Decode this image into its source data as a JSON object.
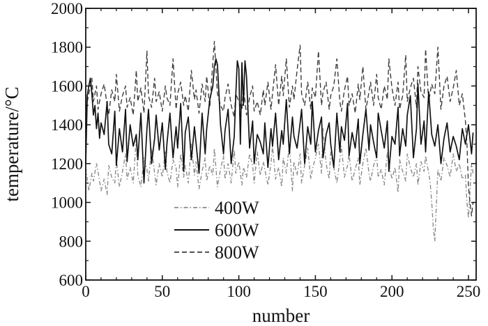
{
  "chart_data": {
    "type": "line",
    "xlabel": "number",
    "ylabel": "temperature/°C",
    "xlim": [
      0,
      255
    ],
    "ylim": [
      600,
      2000
    ],
    "x_ticks": [
      0,
      50,
      100,
      150,
      200,
      250
    ],
    "y_ticks": [
      600,
      800,
      1000,
      1200,
      1400,
      1600,
      1800,
      2000
    ],
    "legend_position": "lower-left",
    "grid": false,
    "series": [
      {
        "name": "400W",
        "style": "dashdot",
        "color": "#8a8a8a",
        "x": [
          0,
          2,
          4,
          5,
          7,
          8,
          10,
          12,
          14,
          15,
          17,
          19,
          20,
          22,
          24,
          26,
          27,
          29,
          31,
          33,
          34,
          36,
          38,
          40,
          41,
          43,
          45,
          46,
          48,
          50,
          52,
          53,
          55,
          57,
          59,
          60,
          62,
          64,
          65,
          67,
          69,
          71,
          72,
          74,
          76,
          78,
          79,
          81,
          83,
          84,
          86,
          88,
          90,
          91,
          93,
          95,
          97,
          98,
          100,
          102,
          103,
          105,
          107,
          109,
          110,
          112,
          114,
          116,
          117,
          119,
          121,
          122,
          124,
          126,
          128,
          129,
          131,
          133,
          135,
          136,
          138,
          140,
          141,
          143,
          145,
          147,
          148,
          150,
          152,
          154,
          155,
          157,
          159,
          160,
          162,
          164,
          166,
          167,
          169,
          171,
          172,
          174,
          176,
          178,
          179,
          181,
          183,
          185,
          186,
          188,
          190,
          191,
          193,
          195,
          197,
          198,
          200,
          202,
          204,
          205,
          207,
          209,
          210,
          212,
          214,
          216,
          217,
          219,
          221,
          222,
          224,
          225,
          226,
          227,
          228,
          230,
          232,
          234,
          236,
          238,
          240,
          242,
          244,
          246,
          248,
          249,
          250,
          251,
          252,
          253
        ],
        "y": [
          1180,
          1060,
          1150,
          1110,
          1200,
          1160,
          1060,
          1120,
          1040,
          1190,
          1130,
          1100,
          1220,
          1080,
          1160,
          1250,
          1120,
          1180,
          1100,
          1330,
          1140,
          1080,
          1230,
          1170,
          1110,
          1280,
          1150,
          1090,
          1200,
          1130,
          1260,
          1160,
          1100,
          1220,
          1180,
          1080,
          1250,
          1130,
          1190,
          1100,
          1300,
          1140,
          1210,
          1070,
          1160,
          1230,
          1110,
          1190,
          1140,
          1280,
          1080,
          1170,
          1240,
          1120,
          1200,
          1100,
          1270,
          1150,
          1210,
          1090,
          1180,
          1130,
          1250,
          1190,
          1100,
          1260,
          1140,
          1210,
          1170,
          1090,
          1200,
          1290,
          1120,
          1180,
          1080,
          1230,
          1150,
          1300,
          1060,
          1210,
          1140,
          1250,
          1100,
          1190,
          1280,
          1120,
          1170,
          1230,
          1300,
          1150,
          1380,
          1200,
          1120,
          1260,
          1180,
          1100,
          1220,
          1290,
          1130,
          1190,
          1250,
          1110,
          1170,
          1230,
          1090,
          1200,
          1280,
          1150,
          1110,
          1190,
          1240,
          1130,
          1170,
          1090,
          1260,
          1200,
          1120,
          1180,
          1050,
          1220,
          1160,
          1110,
          1250,
          1180,
          1130,
          1200,
          1090,
          1210,
          1160,
          1240,
          1150,
          1100,
          1000,
          870,
          800,
          1170,
          1110,
          1230,
          1190,
          1130,
          1250,
          1160,
          1200,
          1120,
          1140,
          1000,
          920,
          1060,
          1200,
          1150
        ]
      },
      {
        "name": "600W",
        "style": "solid",
        "color": "#111111",
        "x": [
          0,
          1,
          2,
          3,
          4,
          5,
          6,
          7,
          8,
          9,
          10,
          12,
          14,
          15,
          17,
          19,
          20,
          22,
          24,
          26,
          27,
          29,
          31,
          33,
          34,
          36,
          38,
          40,
          41,
          43,
          45,
          46,
          48,
          50,
          52,
          53,
          55,
          57,
          59,
          60,
          62,
          64,
          65,
          67,
          69,
          71,
          72,
          74,
          76,
          78,
          79,
          81,
          83,
          84,
          85,
          86,
          87,
          88,
          90,
          91,
          93,
          95,
          97,
          98,
          99,
          100,
          101,
          102,
          103,
          104,
          105,
          107,
          109,
          110,
          112,
          114,
          116,
          117,
          119,
          121,
          122,
          124,
          126,
          128,
          129,
          131,
          133,
          135,
          136,
          138,
          140,
          141,
          143,
          145,
          147,
          148,
          150,
          152,
          154,
          155,
          157,
          159,
          160,
          162,
          164,
          166,
          167,
          169,
          171,
          172,
          174,
          176,
          178,
          179,
          181,
          183,
          185,
          186,
          188,
          190,
          191,
          193,
          195,
          197,
          198,
          200,
          202,
          204,
          205,
          207,
          209,
          210,
          212,
          214,
          216,
          217,
          219,
          221,
          222,
          224,
          226,
          228,
          230,
          232,
          234,
          236,
          238,
          240,
          242,
          244,
          246,
          248,
          250,
          252,
          253
        ],
        "y": [
          1200,
          1550,
          1600,
          1640,
          1560,
          1450,
          1500,
          1380,
          1460,
          1330,
          1410,
          1350,
          1520,
          1300,
          1250,
          1470,
          1190,
          1380,
          1260,
          1480,
          1210,
          1400,
          1290,
          1350,
          1220,
          1460,
          1100,
          1380,
          1480,
          1200,
          1330,
          1450,
          1270,
          1410,
          1170,
          1300,
          1460,
          1230,
          1390,
          1280,
          1510,
          1160,
          1360,
          1440,
          1220,
          1390,
          1310,
          1150,
          1460,
          1250,
          1380,
          1530,
          1600,
          1700,
          1740,
          1710,
          1560,
          1400,
          1250,
          1370,
          1480,
          1200,
          1340,
          1550,
          1730,
          1690,
          1300,
          1720,
          1500,
          1730,
          1650,
          1280,
          1420,
          1200,
          1350,
          1310,
          1250,
          1410,
          1180,
          1380,
          1290,
          1460,
          1220,
          1370,
          1300,
          1530,
          1250,
          1440,
          1340,
          1280,
          1410,
          1480,
          1200,
          1390,
          1300,
          1520,
          1260,
          1370,
          1440,
          1230,
          1350,
          1410,
          1300,
          1180,
          1460,
          1260,
          1390,
          1320,
          1510,
          1240,
          1360,
          1280,
          1430,
          1200,
          1350,
          1480,
          1270,
          1400,
          1310,
          1230,
          1460,
          1370,
          1280,
          1420,
          1160,
          1340,
          1300,
          1490,
          1240,
          1380,
          1290,
          1450,
          1550,
          1230,
          1380,
          1610,
          1300,
          1420,
          1260,
          1570,
          1350,
          1290,
          1400,
          1200,
          1330,
          1410,
          1260,
          1340,
          1290,
          1220,
          1380,
          1300,
          1400,
          1250,
          1360
        ]
      },
      {
        "name": "800W",
        "style": "dashed",
        "color": "#3c3c3c",
        "x": [
          0,
          2,
          4,
          5,
          7,
          8,
          10,
          12,
          14,
          15,
          17,
          19,
          20,
          22,
          24,
          26,
          27,
          29,
          31,
          33,
          34,
          36,
          38,
          40,
          41,
          43,
          45,
          46,
          48,
          50,
          52,
          53,
          55,
          57,
          59,
          60,
          62,
          64,
          65,
          67,
          69,
          71,
          72,
          74,
          76,
          78,
          79,
          81,
          83,
          84,
          86,
          88,
          90,
          91,
          93,
          95,
          97,
          98,
          100,
          102,
          103,
          105,
          107,
          109,
          110,
          112,
          114,
          116,
          117,
          119,
          121,
          122,
          124,
          126,
          128,
          129,
          131,
          133,
          135,
          136,
          138,
          140,
          141,
          143,
          145,
          147,
          148,
          150,
          152,
          154,
          155,
          157,
          159,
          160,
          162,
          164,
          166,
          167,
          169,
          171,
          172,
          174,
          176,
          178,
          179,
          181,
          183,
          185,
          186,
          188,
          190,
          191,
          193,
          195,
          197,
          198,
          200,
          202,
          204,
          205,
          207,
          209,
          210,
          212,
          214,
          216,
          217,
          219,
          221,
          222,
          224,
          226,
          228,
          230,
          232,
          234,
          236,
          238,
          240,
          242,
          244,
          246,
          248,
          249,
          250,
          251,
          252,
          253
        ],
        "y": [
          1480,
          1560,
          1640,
          1520,
          1600,
          1480,
          1560,
          1610,
          1500,
          1450,
          1580,
          1520,
          1660,
          1470,
          1550,
          1600,
          1490,
          1540,
          1450,
          1680,
          1520,
          1590,
          1460,
          1780,
          1550,
          1490,
          1640,
          1520,
          1570,
          1470,
          1600,
          1540,
          1500,
          1740,
          1480,
          1560,
          1620,
          1500,
          1550,
          1470,
          1680,
          1530,
          1580,
          1460,
          1610,
          1520,
          1650,
          1490,
          1720,
          1830,
          1560,
          1500,
          1470,
          1540,
          1610,
          1500,
          1440,
          1560,
          1520,
          1480,
          1590,
          1450,
          1540,
          1600,
          1470,
          1520,
          1450,
          1580,
          1500,
          1620,
          1480,
          1560,
          1710,
          1500,
          1650,
          1550,
          1740,
          1490,
          1600,
          1530,
          1680,
          1810,
          1560,
          1500,
          1620,
          1480,
          1590,
          1540,
          1780,
          1500,
          1570,
          1620,
          1480,
          1550,
          1600,
          1740,
          1520,
          1470,
          1580,
          1650,
          1500,
          1560,
          1460,
          1610,
          1530,
          1700,
          1480,
          1570,
          1620,
          1500,
          1660,
          1540,
          1480,
          1600,
          1530,
          1740,
          1590,
          1500,
          1620,
          1480,
          1550,
          1760,
          1520,
          1590,
          1640,
          1490,
          1700,
          1570,
          1540,
          1790,
          1520,
          1610,
          1560,
          1800,
          1480,
          1600,
          1650,
          1520,
          1590,
          1680,
          1500,
          1560,
          1420,
          1300,
          1080,
          1000,
          930,
          1000
        ]
      }
    ]
  }
}
